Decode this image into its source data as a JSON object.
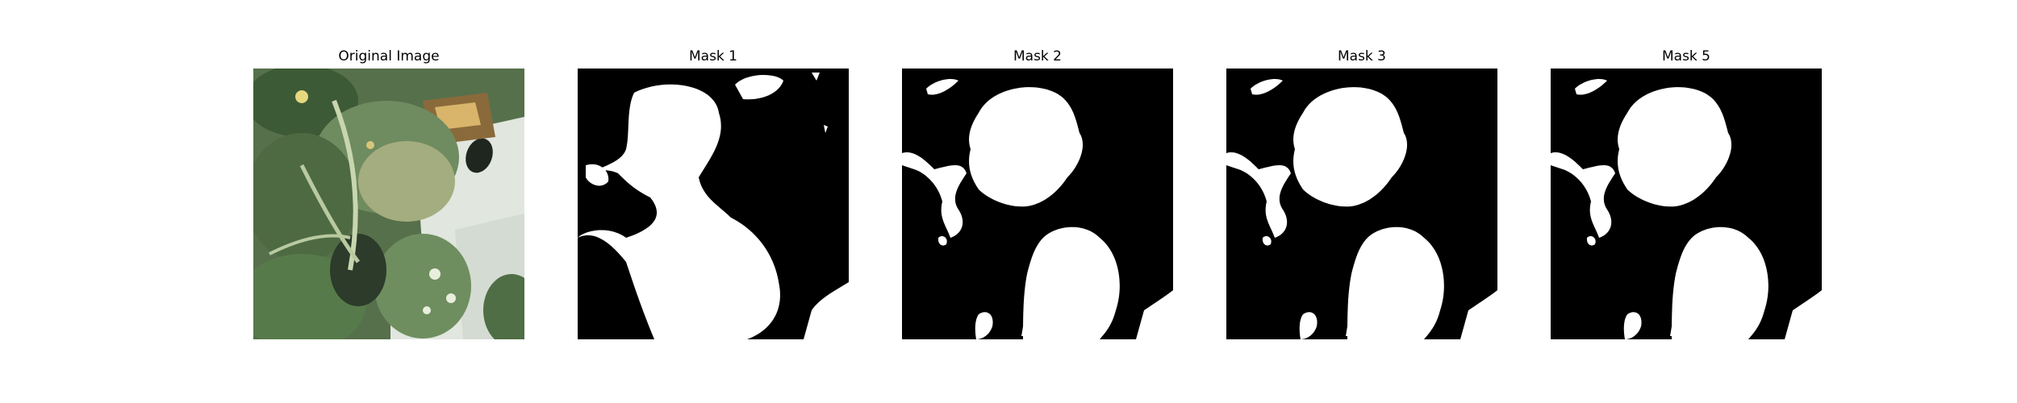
{
  "figure": {
    "panels": [
      {
        "title": "Original Image"
      },
      {
        "title": "Mask 1"
      },
      {
        "title": "Mask 2"
      },
      {
        "title": "Mask 3"
      },
      {
        "title": "Mask 5"
      }
    ]
  },
  "colors": {
    "mask_foreground": "#ffffff",
    "mask_background": "#000000",
    "leaf_dark": "#3e5a37",
    "leaf_mid": "#5f7f52",
    "leaf_light": "#9fb08a",
    "container": "#e4e8e2"
  }
}
